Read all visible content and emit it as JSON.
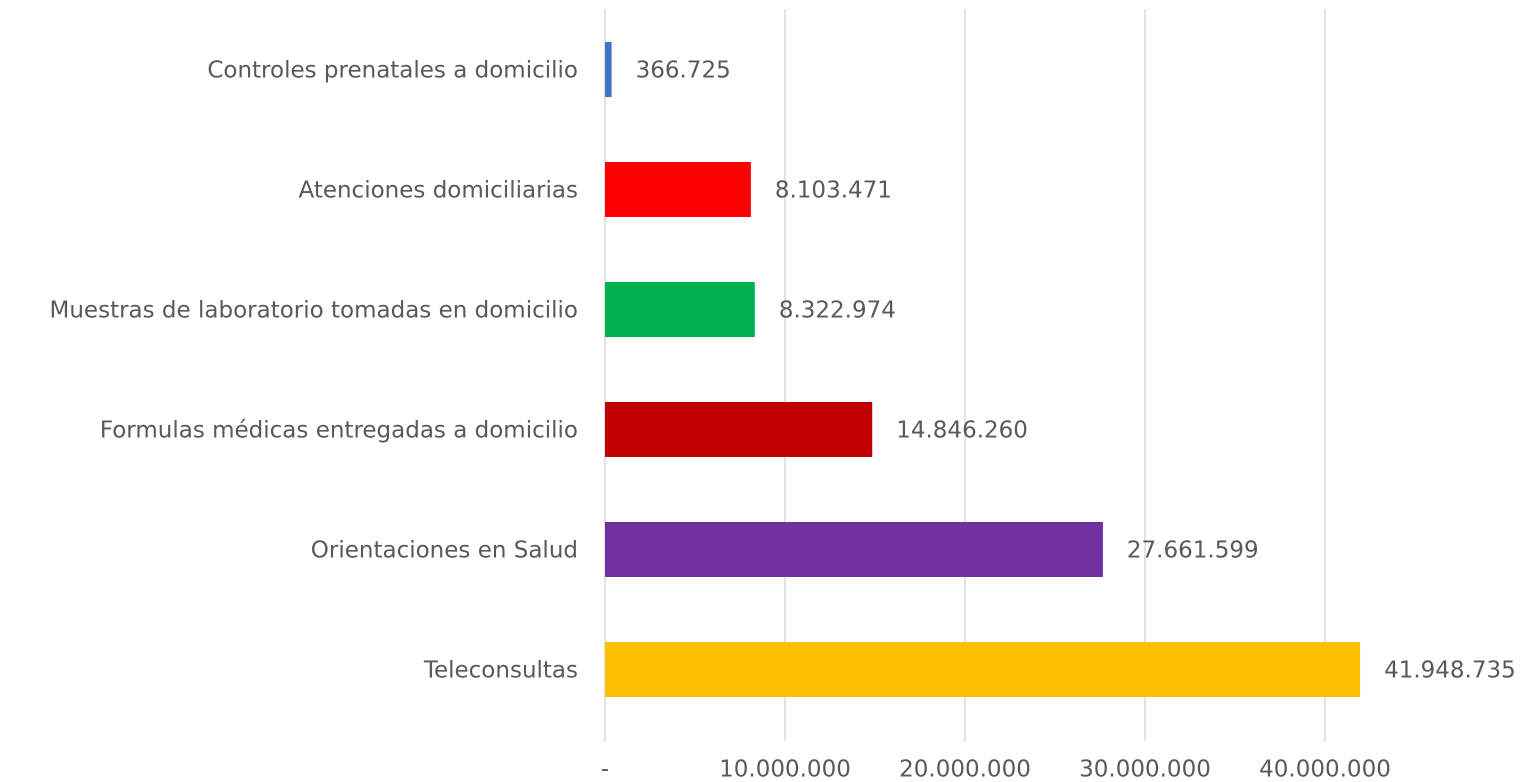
{
  "chart_data": {
    "type": "barh",
    "categories": [
      "Controles prenatales a domicilio",
      "Atenciones domiciliarias",
      "Muestras de laboratorio tomadas en domicilio",
      "Formulas médicas entregadas a domicilio",
      "Orientaciones en Salud",
      "Teleconsultas"
    ],
    "values": [
      366725,
      8103471,
      8322974,
      14846260,
      27661599,
      41948735
    ],
    "value_labels": [
      "366.725",
      "8.103.471",
      "8.322.974",
      "14.846.260",
      "27.661.599",
      "41.948.735"
    ],
    "colors": [
      "#4472c4",
      "#ff0000",
      "#00b050",
      "#c00000",
      "#7030a0",
      "#ffc000"
    ],
    "xlim": [
      0,
      45000000
    ],
    "xticks": [
      {
        "value": 0,
        "label": "-"
      },
      {
        "value": 10000000,
        "label": "10.000.000"
      },
      {
        "value": 20000000,
        "label": "20.000.000"
      },
      {
        "value": 30000000,
        "label": "30.000.000"
      },
      {
        "value": 40000000,
        "label": "40.000.000"
      }
    ],
    "grid": true
  }
}
